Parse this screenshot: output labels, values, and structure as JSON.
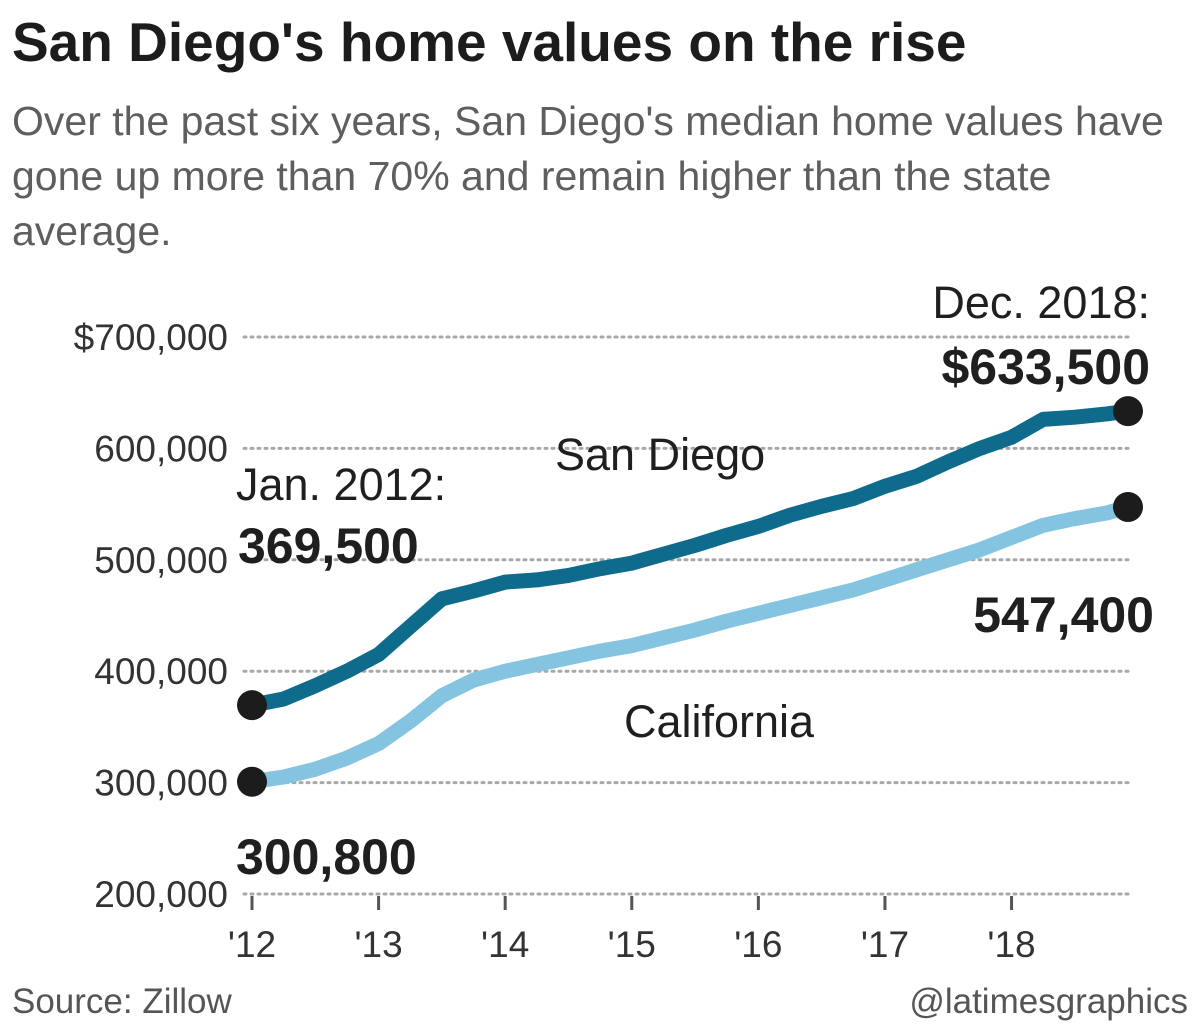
{
  "chart_data": {
    "type": "line",
    "title": "San Diego's home values on the rise",
    "subtitle": "Over the past six years, San Diego's median home values have gone up more than 70% and remain higher than the state average.",
    "xlabel": "",
    "ylabel": "",
    "xlim": [
      2012.0,
      2018.92
    ],
    "ylim": [
      200000,
      700000
    ],
    "y_ticks": [
      700000,
      600000,
      500000,
      400000,
      300000,
      200000
    ],
    "y_tick_labels": [
      "$700,000",
      "600,000",
      "500,000",
      "400,000",
      "300,000",
      "200,000"
    ],
    "x_ticks": [
      2012,
      2013,
      2014,
      2015,
      2016,
      2017,
      2018
    ],
    "x_tick_labels": [
      "'12",
      "'13",
      "'14",
      "'15",
      "'16",
      "'17",
      "'18"
    ],
    "grid": true,
    "series": [
      {
        "name": "San Diego",
        "color": "#0f6b8c",
        "x": [
          2012.0,
          2012.25,
          2012.5,
          2012.75,
          2013.0,
          2013.25,
          2013.5,
          2013.75,
          2014.0,
          2014.25,
          2014.5,
          2014.75,
          2015.0,
          2015.25,
          2015.5,
          2015.75,
          2016.0,
          2016.25,
          2016.5,
          2016.75,
          2017.0,
          2017.25,
          2017.5,
          2017.75,
          2018.0,
          2018.25,
          2018.5,
          2018.75,
          2018.92
        ],
        "values": [
          369500,
          375000,
          387000,
          400000,
          415000,
          440000,
          465000,
          472000,
          480000,
          482000,
          486000,
          492000,
          497000,
          505000,
          513000,
          522000,
          530000,
          540000,
          548000,
          555000,
          566000,
          575000,
          588000,
          600000,
          610000,
          626000,
          628000,
          631000,
          633500
        ]
      },
      {
        "name": "California",
        "color": "#85c4e0",
        "x": [
          2012.0,
          2012.25,
          2012.5,
          2012.75,
          2013.0,
          2013.25,
          2013.5,
          2013.75,
          2014.0,
          2014.25,
          2014.5,
          2014.75,
          2015.0,
          2015.25,
          2015.5,
          2015.75,
          2016.0,
          2016.25,
          2016.5,
          2016.75,
          2017.0,
          2017.25,
          2017.5,
          2017.75,
          2018.0,
          2018.25,
          2018.5,
          2018.75,
          2018.92
        ],
        "values": [
          300800,
          305000,
          312000,
          322000,
          335000,
          355000,
          378000,
          392000,
          400000,
          406000,
          412000,
          418000,
          423000,
          430000,
          437000,
          445000,
          452000,
          459000,
          466000,
          473000,
          482000,
          491000,
          500000,
          509000,
          520000,
          531000,
          537000,
          542000,
          547400
        ]
      }
    ],
    "series_labels": {
      "san_diego": "San Diego",
      "california": "California"
    },
    "annotations": {
      "start_label": "Jan. 2012:",
      "sd_start_value": "369,500",
      "ca_start_value": "300,800",
      "end_label": "Dec. 2018:",
      "sd_end_value": "$633,500",
      "ca_end_value": "547,400"
    },
    "source": "Source: Zillow",
    "credit": "@latimesgraphics"
  }
}
